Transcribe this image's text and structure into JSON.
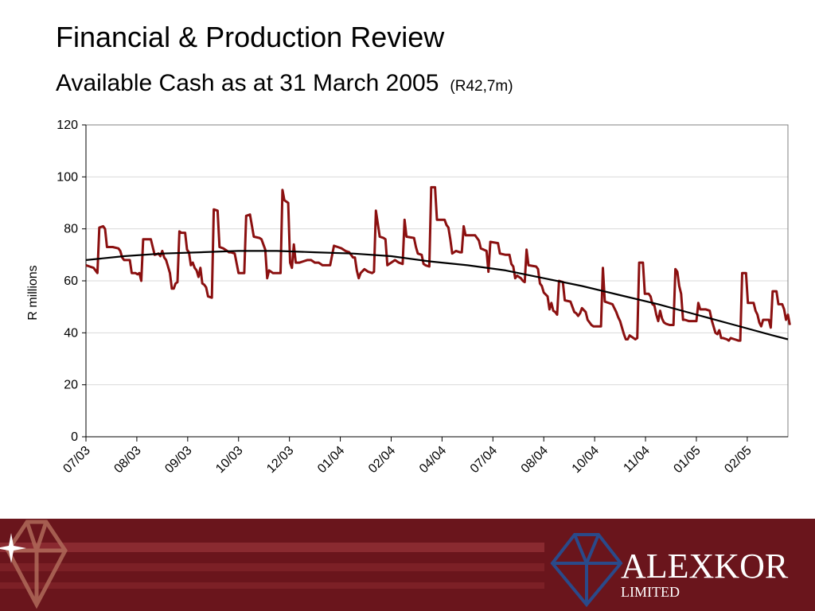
{
  "slide": {
    "title": "Financial & Production Review",
    "subtitle": "Available Cash as at 31 March 2005",
    "subtitle_note": "(R42,7m)"
  },
  "logo": {
    "name": "ALEXKOR",
    "tagline": "LIMITED",
    "icon": "diamond-icon"
  },
  "colors": {
    "series": "#8b1010",
    "trend": "#000000",
    "footer": "#6a151c",
    "footer_stripe": "#9a3a40"
  },
  "chart_data": {
    "type": "line",
    "title": "",
    "xlabel": "",
    "ylabel": "R millions",
    "ylim": [
      0,
      120
    ],
    "yticks": [
      0,
      20,
      40,
      60,
      80,
      100,
      120
    ],
    "xlim": [
      0,
      180
    ],
    "grid": true,
    "legend": "none",
    "x_tick_labels": [
      "07/03",
      "08/03",
      "09/03",
      "10/03",
      "12/03",
      "01/04",
      "02/04",
      "04/04",
      "07/04",
      "08/04",
      "10/04",
      "11/04",
      "01/05",
      "02/05"
    ],
    "series": [
      {
        "name": "",
        "color": "#8b1010",
        "points": [
          [
            0,
            66
          ],
          [
            1,
            65.5
          ],
          [
            2,
            65
          ],
          [
            3,
            63
          ],
          [
            3.5,
            80.5
          ],
          [
            4.5,
            81
          ],
          [
            5,
            80
          ],
          [
            5.5,
            73
          ],
          [
            7,
            73
          ],
          [
            8.5,
            72.5
          ],
          [
            9,
            71.5
          ],
          [
            9.5,
            69
          ],
          [
            10,
            68
          ],
          [
            11,
            68
          ],
          [
            11.5,
            68
          ],
          [
            12,
            63
          ],
          [
            13,
            63
          ],
          [
            13.5,
            62.5
          ],
          [
            14,
            63
          ],
          [
            14.5,
            60
          ],
          [
            15,
            76
          ],
          [
            17,
            76
          ],
          [
            18,
            70
          ],
          [
            19,
            70.5
          ],
          [
            19.5,
            69.5
          ],
          [
            20,
            71.5
          ],
          [
            20.5,
            69
          ],
          [
            21,
            68
          ],
          [
            21.5,
            65.5
          ],
          [
            22,
            63
          ],
          [
            22.5,
            57
          ],
          [
            23,
            57
          ],
          [
            23.5,
            59
          ],
          [
            24,
            59.5
          ],
          [
            24.5,
            79
          ],
          [
            25,
            78.5
          ],
          [
            26,
            78.5
          ],
          [
            26.5,
            72
          ],
          [
            27,
            71
          ],
          [
            27.5,
            66
          ],
          [
            28,
            67
          ],
          [
            28.5,
            65
          ],
          [
            29,
            64
          ],
          [
            29.5,
            61.5
          ],
          [
            30,
            65
          ],
          [
            30.5,
            59
          ],
          [
            31,
            58.5
          ],
          [
            31.5,
            57.5
          ],
          [
            32,
            54
          ],
          [
            33,
            53.5
          ],
          [
            33.5,
            87.5
          ],
          [
            34.5,
            87
          ],
          [
            35,
            73
          ],
          [
            36,
            72.5
          ],
          [
            37,
            71.5
          ],
          [
            37.5,
            71
          ],
          [
            38,
            71
          ],
          [
            39,
            70.5
          ],
          [
            40,
            63
          ],
          [
            41,
            63
          ],
          [
            41.5,
            63
          ],
          [
            42,
            85
          ],
          [
            43,
            85.5
          ],
          [
            44,
            77
          ],
          [
            45.5,
            76.5
          ],
          [
            46,
            76
          ],
          [
            47,
            72
          ],
          [
            47.5,
            61
          ],
          [
            48,
            64
          ],
          [
            49,
            63
          ],
          [
            50,
            63
          ],
          [
            51,
            63
          ],
          [
            51.5,
            95
          ],
          [
            52,
            91
          ],
          [
            53,
            90
          ],
          [
            53.5,
            67
          ],
          [
            54,
            65
          ],
          [
            54.5,
            74
          ],
          [
            55,
            67
          ],
          [
            56,
            67
          ],
          [
            57,
            67.5
          ],
          [
            58,
            68
          ],
          [
            59,
            68
          ],
          [
            60,
            67
          ],
          [
            61,
            67
          ],
          [
            62,
            66
          ],
          [
            63,
            66
          ],
          [
            64,
            66
          ],
          [
            65,
            73.5
          ],
          [
            66,
            73
          ],
          [
            67,
            72.5
          ],
          [
            68,
            71.5
          ],
          [
            69,
            71
          ],
          [
            70,
            69
          ],
          [
            70.5,
            69
          ],
          [
            71,
            64
          ],
          [
            71.5,
            61
          ],
          [
            72,
            63
          ],
          [
            73,
            64.5
          ],
          [
            74,
            63.5
          ],
          [
            75,
            63
          ],
          [
            75.5,
            63.5
          ],
          [
            76,
            87
          ],
          [
            77,
            77
          ],
          [
            78,
            76.5
          ],
          [
            78.5,
            76
          ],
          [
            79,
            66
          ],
          [
            80,
            67
          ],
          [
            81,
            68
          ],
          [
            82,
            67
          ],
          [
            83,
            66.5
          ],
          [
            83.5,
            83.5
          ],
          [
            84,
            77
          ],
          [
            86,
            76.5
          ],
          [
            86.5,
            73
          ],
          [
            87,
            70.5
          ],
          [
            88,
            70
          ],
          [
            88.5,
            66.5
          ],
          [
            89,
            66
          ],
          [
            90,
            65.5
          ],
          [
            90.5,
            96
          ],
          [
            91.5,
            96
          ],
          [
            92,
            83.5
          ],
          [
            94,
            83.5
          ],
          [
            94.5,
            81.5
          ],
          [
            95,
            80.5
          ],
          [
            95.5,
            76
          ],
          [
            96,
            70.5
          ],
          [
            97,
            71.5
          ],
          [
            98,
            71
          ],
          [
            98.5,
            71
          ],
          [
            99,
            81
          ],
          [
            99.5,
            77.5
          ],
          [
            102,
            77.5
          ],
          [
            103,
            75.5
          ],
          [
            103.5,
            72.5
          ],
          [
            105,
            71.5
          ],
          [
            105.5,
            63.5
          ],
          [
            106,
            75
          ],
          [
            108,
            74.5
          ],
          [
            108.5,
            70.5
          ],
          [
            110,
            70
          ],
          [
            111,
            70
          ],
          [
            111.5,
            66.5
          ],
          [
            112,
            65.5
          ],
          [
            112.5,
            61
          ],
          [
            113,
            62
          ],
          [
            114,
            61
          ],
          [
            114.5,
            60
          ],
          [
            115,
            59.5
          ],
          [
            115.5,
            72
          ],
          [
            116,
            66
          ],
          [
            118,
            65.5
          ],
          [
            118.5,
            64.5
          ],
          [
            119,
            59
          ],
          [
            119.5,
            58
          ],
          [
            120,
            55.5
          ],
          [
            121,
            54
          ],
          [
            121.5,
            49
          ],
          [
            122,
            51.5
          ],
          [
            122.5,
            48.5
          ],
          [
            123,
            48
          ],
          [
            123.5,
            47
          ],
          [
            124,
            60
          ],
          [
            125,
            59.5
          ],
          [
            125.5,
            52.5
          ],
          [
            127,
            52
          ],
          [
            127.5,
            50
          ],
          [
            128,
            48
          ],
          [
            128.5,
            47.5
          ],
          [
            129,
            46.5
          ],
          [
            129.5,
            47.5
          ],
          [
            130,
            49.5
          ],
          [
            131,
            48
          ],
          [
            131.5,
            45
          ],
          [
            132,
            44
          ],
          [
            132.5,
            43
          ],
          [
            133,
            42.5
          ],
          [
            134,
            42.5
          ],
          [
            135,
            42.5
          ],
          [
            135.5,
            65
          ],
          [
            136,
            52
          ],
          [
            138,
            51
          ],
          [
            138.5,
            49.5
          ],
          [
            139,
            48
          ],
          [
            139.5,
            46
          ],
          [
            140,
            44.5
          ],
          [
            140.5,
            42
          ],
          [
            141,
            39.5
          ],
          [
            141.5,
            37.5
          ],
          [
            142,
            37.5
          ],
          [
            142.5,
            39
          ],
          [
            143,
            38.5
          ],
          [
            143.5,
            38
          ],
          [
            144,
            37.5
          ],
          [
            144.5,
            38
          ],
          [
            145,
            67
          ],
          [
            146,
            67
          ],
          [
            146.5,
            55
          ],
          [
            147.5,
            55
          ],
          [
            148,
            54
          ],
          [
            148.5,
            51
          ],
          [
            149,
            50.5
          ],
          [
            149.5,
            47
          ],
          [
            150,
            44.5
          ],
          [
            150.5,
            48.5
          ],
          [
            151,
            45.5
          ],
          [
            151.5,
            44
          ],
          [
            152,
            43.5
          ],
          [
            153,
            43
          ],
          [
            154,
            43
          ],
          [
            154.5,
            64.5
          ],
          [
            155,
            63.5
          ],
          [
            155.5,
            58
          ],
          [
            156,
            55
          ],
          [
            156.5,
            45
          ],
          [
            157,
            45
          ],
          [
            158,
            44.5
          ],
          [
            159,
            44.5
          ],
          [
            160,
            44.5
          ],
          [
            160.5,
            51.5
          ],
          [
            161,
            49
          ],
          [
            162.5,
            49
          ],
          [
            163.5,
            48.5
          ],
          [
            164,
            45
          ],
          [
            164.5,
            42.5
          ],
          [
            165,
            40
          ],
          [
            165.5,
            39.5
          ],
          [
            166,
            41
          ],
          [
            166.5,
            38
          ],
          [
            167,
            38
          ],
          [
            168,
            37.5
          ],
          [
            168.5,
            37
          ],
          [
            169,
            38
          ],
          [
            170,
            37.5
          ],
          [
            171,
            37
          ],
          [
            171.5,
            37
          ],
          [
            172,
            63
          ],
          [
            173,
            63
          ],
          [
            173.5,
            51.5
          ],
          [
            175,
            51.5
          ],
          [
            175.5,
            48.5
          ],
          [
            176,
            47
          ],
          [
            176.5,
            44
          ],
          [
            177,
            42.5
          ],
          [
            177.5,
            45
          ],
          [
            179,
            45
          ],
          [
            179.5,
            42
          ],
          [
            180,
            56
          ],
          [
            181,
            56
          ],
          [
            181.5,
            51
          ],
          [
            182.5,
            51
          ],
          [
            183,
            49
          ],
          [
            183.5,
            45
          ],
          [
            184,
            47
          ],
          [
            184.5,
            43
          ]
        ]
      },
      {
        "name": "",
        "color": "#000000",
        "points": [
          [
            0,
            68
          ],
          [
            10,
            69.5
          ],
          [
            20,
            70.5
          ],
          [
            30,
            71
          ],
          [
            40,
            71.5
          ],
          [
            50,
            71.5
          ],
          [
            60,
            71
          ],
          [
            70,
            70.5
          ],
          [
            80,
            69.5
          ],
          [
            90,
            67.5
          ],
          [
            100,
            66
          ],
          [
            110,
            64
          ],
          [
            120,
            61
          ],
          [
            130,
            58
          ],
          [
            140,
            54.5
          ],
          [
            150,
            51
          ],
          [
            160,
            47
          ],
          [
            170,
            43
          ],
          [
            180,
            39
          ],
          [
            184,
            37.5
          ]
        ]
      }
    ]
  }
}
